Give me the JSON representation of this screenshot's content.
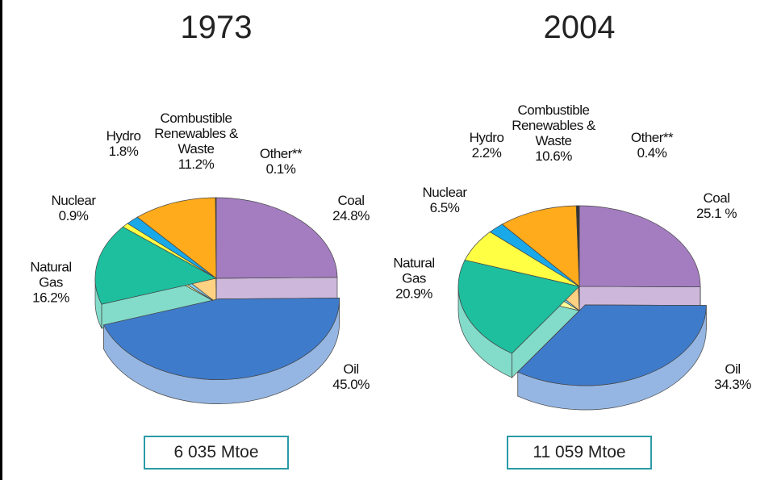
{
  "chart_data": [
    {
      "type": "pie",
      "title": "1973",
      "categories": [
        "Coal",
        "Oil",
        "Natural Gas",
        "Nuclear",
        "Hydro",
        "Combustible Renewables & Waste",
        "Other**"
      ],
      "values": [
        24.8,
        45.0,
        16.2,
        0.9,
        1.8,
        11.2,
        0.1
      ],
      "value_labels": [
        "24.8%",
        "45.0%",
        "16.2%",
        "0.9%",
        "1.8%",
        "11.2%",
        "0.1%"
      ],
      "colors": [
        "#a47dc0",
        "#3f7bcb",
        "#1dbf9f",
        "#ffff44",
        "#1aa9e8",
        "#ffab1c",
        "#333333"
      ],
      "explode": [
        false,
        true,
        false,
        false,
        false,
        false,
        false
      ],
      "total": "6 035 Mtoe"
    },
    {
      "type": "pie",
      "title": "2004",
      "categories": [
        "Coal",
        "Oil",
        "Natural Gas",
        "Nuclear",
        "Hydro",
        "Combustible Renewables & Waste",
        "Other**"
      ],
      "values": [
        25.1,
        34.3,
        20.9,
        6.5,
        2.2,
        10.6,
        0.4
      ],
      "value_labels": [
        "25.1 %",
        "34.3%",
        "20.9%",
        "6.5%",
        "2.2%",
        "10.6%",
        "0.4%"
      ],
      "colors": [
        "#a47dc0",
        "#3f7bcb",
        "#1dbf9f",
        "#ffff44",
        "#1aa9e8",
        "#ffab1c",
        "#333333"
      ],
      "explode": [
        false,
        true,
        false,
        false,
        false,
        false,
        false
      ],
      "total": "11 059 Mtoe"
    }
  ]
}
